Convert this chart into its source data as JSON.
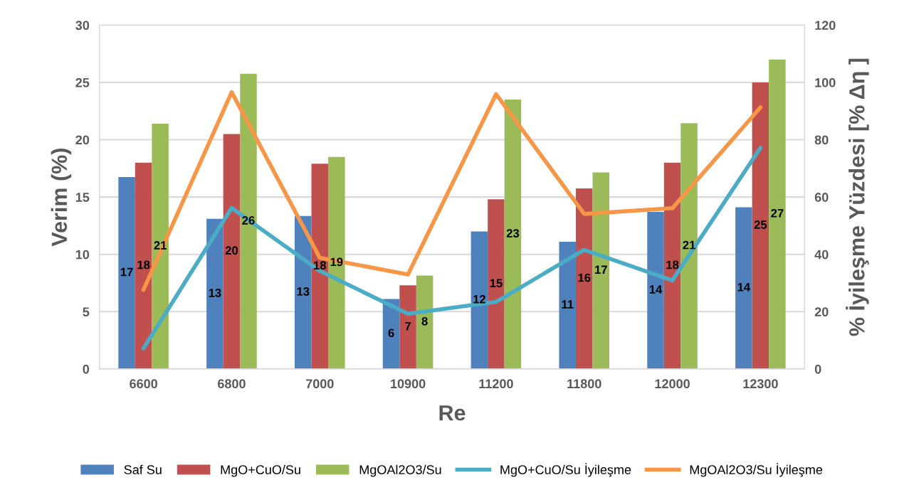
{
  "chart_data": {
    "type": "bar",
    "xlabel": "Re",
    "ylabel": "Verim (%)",
    "y2label": "% İyileşme Yüzdesi [% Δη ]",
    "categories": [
      "6600",
      "6800",
      "7000",
      "10900",
      "11200",
      "11800",
      "12000",
      "12300"
    ],
    "series": [
      {
        "name": "Saf Su",
        "color": "#4f81bd",
        "values": [
          16.75,
          13.1,
          13.35,
          6.1,
          12.0,
          11.1,
          13.7,
          14.1
        ],
        "value_labels": [
          "17",
          "13",
          "13",
          "6",
          "12",
          "11",
          "14",
          "14"
        ]
      },
      {
        "name": "MgO+CuO/Su",
        "color": "#c0504d",
        "values": [
          18.0,
          20.5,
          17.9,
          7.3,
          14.8,
          15.75,
          18.0,
          25.0
        ],
        "value_labels": [
          "18",
          "20",
          "18",
          "7",
          "15",
          "16",
          "18",
          "25"
        ]
      },
      {
        "name": "MgOAl2O3/Su",
        "color": "#9bbb59",
        "values": [
          21.4,
          25.75,
          18.5,
          8.15,
          23.5,
          17.15,
          21.45,
          27.0
        ],
        "value_labels": [
          "21",
          "26",
          "19",
          "8",
          "23",
          "17",
          "21",
          "27"
        ]
      },
      {
        "name": "MgO+CuO/Su İyileşme",
        "type": "line",
        "axis": "y2",
        "color": "#4bacc6",
        "values": [
          7.2,
          56.2,
          34.2,
          19.3,
          23.4,
          41.6,
          30.9,
          77.2
        ]
      },
      {
        "name": "MgOAl2O3/Su İyileşme",
        "type": "line",
        "axis": "y2",
        "color": "#f79646",
        "values": [
          27.6,
          96.6,
          38.8,
          33.0,
          95.9,
          54.1,
          56.1,
          91.3
        ]
      }
    ],
    "ylim": [
      0,
      30
    ],
    "yticks": [
      0,
      5,
      10,
      15,
      20,
      25,
      30
    ],
    "y2lim": [
      0,
      120
    ],
    "y2ticks": [
      0,
      20,
      40,
      60,
      80,
      100,
      120
    ],
    "grid": "y",
    "legend": "bottom",
    "marker": "none",
    "line_style": "solid"
  }
}
